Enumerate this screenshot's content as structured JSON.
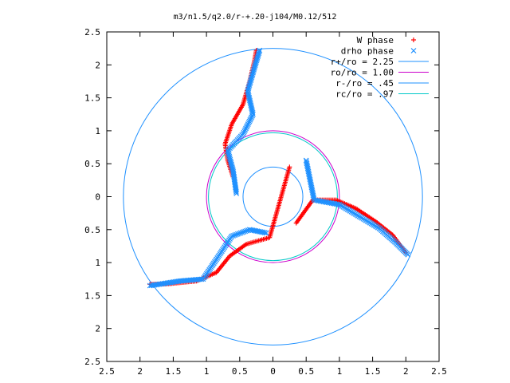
{
  "chart_data": {
    "type": "scatter",
    "title": "m3/n1.5/q2.0/r-+.20-j104/M0.12/512",
    "xlabel": "",
    "ylabel": "",
    "xlim": [
      -2.5,
      2.5
    ],
    "ylim": [
      -2.5,
      2.5
    ],
    "x_ticks": [
      -2.5,
      -2,
      -1.5,
      -1,
      -0.5,
      0,
      0.5,
      1,
      1.5,
      2,
      2.5
    ],
    "x_tick_labels": [
      "2.5",
      "2",
      "1.5",
      "1",
      "0.5",
      "0",
      "0.5",
      "1",
      "1.5",
      "2",
      "2.5"
    ],
    "y_ticks": [
      2.5,
      2,
      1.5,
      1,
      0.5,
      0,
      -0.5,
      -1,
      -1.5,
      -2,
      -2.5
    ],
    "y_tick_labels": [
      "2.5",
      "2",
      "1.5",
      "1",
      "0.5",
      "0",
      "0.5",
      "1",
      "1.5",
      "2",
      "2.5"
    ],
    "grid": false,
    "legend_position": "top-right",
    "series": [
      {
        "name": "W phase",
        "marker": "plus",
        "color": "#ff0000",
        "arms": [
          [
            [
              -0.6,
              0.3
            ],
            [
              -0.68,
              0.55
            ],
            [
              -0.72,
              0.8
            ],
            [
              -0.62,
              1.1
            ],
            [
              -0.45,
              1.4
            ],
            [
              -0.35,
              1.75
            ],
            [
              -0.28,
              2.05
            ],
            [
              -0.25,
              2.22
            ]
          ],
          [
            [
              0.35,
              -0.4
            ],
            [
              0.6,
              -0.05
            ],
            [
              0.95,
              -0.05
            ],
            [
              1.25,
              -0.18
            ],
            [
              1.55,
              -0.38
            ],
            [
              1.8,
              -0.58
            ],
            [
              2.0,
              -0.85
            ]
          ],
          [
            [
              0.25,
              0.45
            ],
            [
              -0.05,
              -0.62
            ],
            [
              -0.4,
              -0.72
            ],
            [
              -0.65,
              -0.9
            ],
            [
              -0.85,
              -1.15
            ],
            [
              -1.15,
              -1.28
            ],
            [
              -1.55,
              -1.32
            ],
            [
              -1.85,
              -1.33
            ]
          ]
        ]
      },
      {
        "name": "drho phase",
        "marker": "cross",
        "color": "#1e90ff",
        "arms": [
          [
            [
              -0.55,
              0.05
            ],
            [
              -0.6,
              0.4
            ],
            [
              -0.68,
              0.7
            ],
            [
              -0.45,
              0.95
            ],
            [
              -0.3,
              1.25
            ],
            [
              -0.38,
              1.6
            ],
            [
              -0.28,
              1.95
            ],
            [
              -0.2,
              2.22
            ]
          ],
          [
            [
              0.5,
              0.55
            ],
            [
              0.62,
              -0.05
            ],
            [
              1.0,
              -0.12
            ],
            [
              1.3,
              -0.3
            ],
            [
              1.6,
              -0.48
            ],
            [
              1.85,
              -0.7
            ],
            [
              2.03,
              -0.88
            ]
          ],
          [
            [
              -0.1,
              -0.55
            ],
            [
              -0.35,
              -0.5
            ],
            [
              -0.62,
              -0.6
            ],
            [
              -0.85,
              -0.95
            ],
            [
              -1.05,
              -1.25
            ],
            [
              -1.4,
              -1.28
            ],
            [
              -1.85,
              -1.35
            ]
          ]
        ]
      }
    ],
    "circles": [
      {
        "name": "r+/ro = 2.25",
        "radius": 2.25,
        "color": "#1e90ff"
      },
      {
        "name": "ro/ro = 1.00",
        "radius": 1.0,
        "color": "#cc00cc"
      },
      {
        "name": "r-/ro = .45",
        "radius": 0.45,
        "color": "#1e90ff"
      },
      {
        "name": "rc/ro = .97",
        "radius": 0.97,
        "color": "#00c8c8"
      }
    ]
  }
}
